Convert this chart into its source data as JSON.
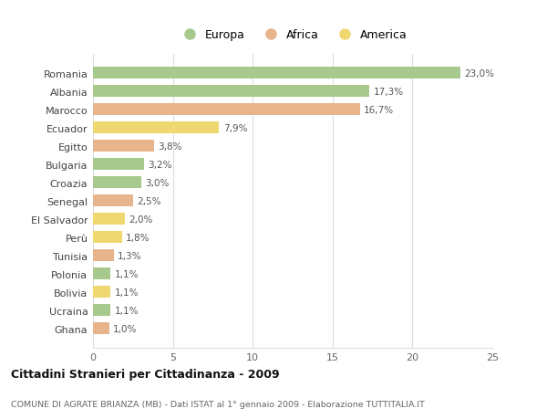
{
  "countries": [
    "Romania",
    "Albania",
    "Marocco",
    "Ecuador",
    "Egitto",
    "Bulgaria",
    "Croazia",
    "Senegal",
    "El Salvador",
    "Perù",
    "Tunisia",
    "Polonia",
    "Bolivia",
    "Ucraina",
    "Ghana"
  ],
  "values": [
    23.0,
    17.3,
    16.7,
    7.9,
    3.8,
    3.2,
    3.0,
    2.5,
    2.0,
    1.8,
    1.3,
    1.1,
    1.1,
    1.1,
    1.0
  ],
  "continents": [
    "Europa",
    "Europa",
    "Africa",
    "America",
    "Africa",
    "Europa",
    "Europa",
    "Africa",
    "America",
    "America",
    "Africa",
    "Europa",
    "America",
    "Europa",
    "Africa"
  ],
  "colors": {
    "Europa": "#a8c98e",
    "Africa": "#e8b48c",
    "America": "#f0d870"
  },
  "title": "Cittadini Stranieri per Cittadinanza - 2009",
  "subtitle": "COMUNE DI AGRATE BRIANZA (MB) - Dati ISTAT al 1° gennaio 2009 - Elaborazione TUTTITALIA.IT",
  "xlim": [
    0,
    25
  ],
  "xticks": [
    0,
    5,
    10,
    15,
    20,
    25
  ],
  "background_color": "#ffffff",
  "plot_bg_color": "#ffffff",
  "grid_color": "#dddddd",
  "bar_height": 0.65
}
